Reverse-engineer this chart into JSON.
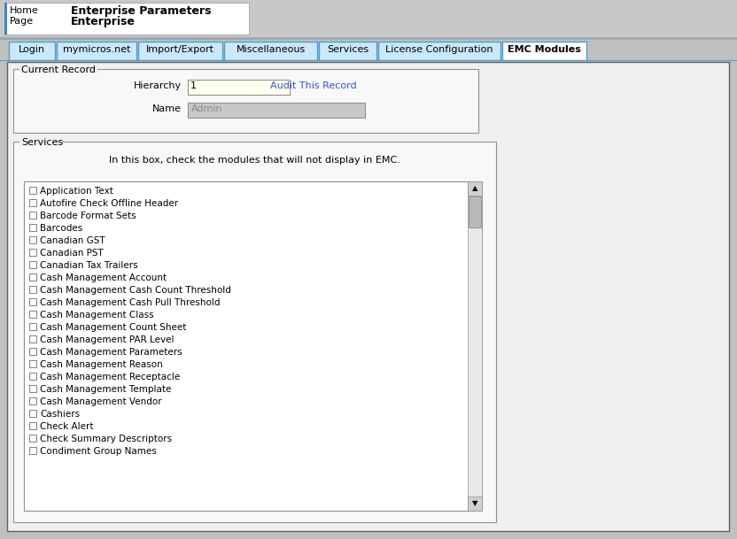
{
  "title": "Enterprise Parameters",
  "subtitle": "Enterprise",
  "bg_color": "#c0c0c0",
  "white": "#ffffff",
  "tabs": [
    "Login",
    "mymicros.net",
    "Import/Export",
    "Miscellaneous",
    "Services",
    "License Configuration",
    "EMC Modules"
  ],
  "tab_widths": [
    52,
    90,
    95,
    105,
    65,
    138,
    95
  ],
  "active_tab": "EMC Modules",
  "tab_bg": "#cce8f8",
  "active_tab_bg": "#ffffff",
  "current_record_label": "Current Record",
  "hierarchy_label": "Hierarchy",
  "hierarchy_value": "1",
  "hierarchy_box_color": "#ffffee",
  "audit_link": "Audit This Record",
  "audit_color": "#3355cc",
  "name_label": "Name",
  "name_value": "Admin",
  "name_box_color": "#c8c8c8",
  "services_label": "Services",
  "services_description": "In this box, check the modules that will not display in EMC.",
  "checkboxes": [
    "Application Text",
    "Autofire Check Offline Header",
    "Barcode Format Sets",
    "Barcodes",
    "Canadian GST",
    "Canadian PST",
    "Canadian Tax Trailers",
    "Cash Management Account",
    "Cash Management Cash Count Threshold",
    "Cash Management Cash Pull Threshold",
    "Cash Management Class",
    "Cash Management Count Sheet",
    "Cash Management PAR Level",
    "Cash Management Parameters",
    "Cash Management Reason",
    "Cash Management Receptacle",
    "Cash Management Template",
    "Cash Management Vendor",
    "Cashiers",
    "Check Alert",
    "Check Summary Descriptors",
    "Condiment Group Names"
  ],
  "border_color": "#808080",
  "tab_border_color": "#4a9fd4",
  "header_bg": "#c8c8c8",
  "frame_bg": "#f0f0f0",
  "content_bg": "#f0f0f0",
  "list_bg": "#ffffff",
  "scrollbar_color": "#d0d0d0",
  "scrollbar_track": "#e8e8e8"
}
